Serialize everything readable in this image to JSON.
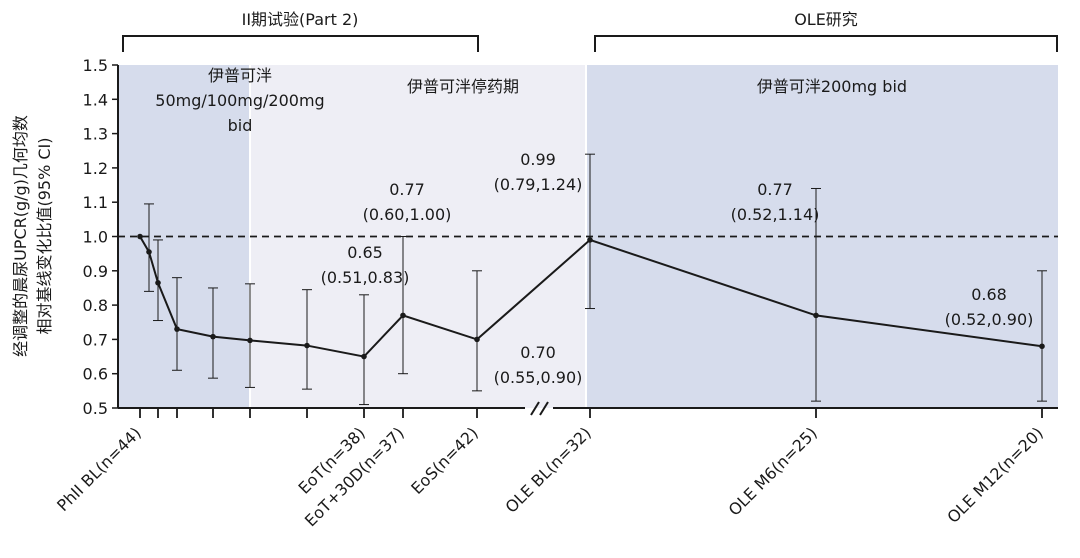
{
  "chart_data": {
    "type": "line",
    "ylabel": "经调整的晨尿UPCR(g/g)几何均数 相对基线变化比值(95% CI)",
    "ylabel_lines": [
      "经调整的晨尿UPCR(g/g)几何均数",
      "相对基线变化比值(95% CI)"
    ],
    "ylim": [
      0.5,
      1.5
    ],
    "yticks": [
      "0.5",
      "0.6",
      "0.7",
      "0.8",
      "0.9",
      "1.0",
      "1.1",
      "1.2",
      "1.3",
      "1.4",
      "1.5"
    ],
    "reference_line": 1.0,
    "periods": [
      {
        "label": "II期试验(Part 2)"
      },
      {
        "label": "OLE研究"
      }
    ],
    "shaded_regions": [
      {
        "label_lines": [
          "伊普可泮",
          "50mg/100mg/200mg",
          "bid"
        ]
      },
      {
        "label_lines": [
          "伊普可泮停药期"
        ]
      },
      {
        "label_lines": [
          "伊普可泮200mg bid"
        ]
      }
    ],
    "x_tick_labels": [
      {
        "label": "PhII BL(n=44)"
      },
      {
        "label": "EoT(n=38)"
      },
      {
        "label": "EoT+30D(n=37)"
      },
      {
        "label": "EoS(n=42)"
      },
      {
        "label": "OLE BL(n=32)"
      },
      {
        "label": "OLE M6(n=25)"
      },
      {
        "label": "OLE M12(n=20)"
      }
    ],
    "series": [
      {
        "points": [
          {
            "y": 1.0,
            "lo": null,
            "hi": null
          },
          {
            "y": 0.955,
            "lo": 0.84,
            "hi": 1.095
          },
          {
            "y": 0.865,
            "lo": 0.755,
            "hi": 0.99
          },
          {
            "y": 0.73,
            "lo": 0.61,
            "hi": 0.88
          },
          {
            "y": 0.708,
            "lo": 0.587,
            "hi": 0.85
          },
          {
            "y": 0.697,
            "lo": 0.56,
            "hi": 0.862
          },
          {
            "y": 0.682,
            "lo": 0.555,
            "hi": 0.845
          },
          {
            "y": 0.65,
            "lo": 0.51,
            "hi": 0.83
          },
          {
            "y": 0.77,
            "lo": 0.6,
            "hi": 1.0
          },
          {
            "y": 0.7,
            "lo": 0.55,
            "hi": 0.9
          },
          {
            "y": 0.99,
            "lo": 0.79,
            "hi": 1.24
          },
          {
            "y": 0.77,
            "lo": 0.52,
            "hi": 1.14
          },
          {
            "y": 0.68,
            "lo": 0.52,
            "hi": 0.9
          }
        ]
      }
    ],
    "annotations": [
      {
        "value": "0.65",
        "ci": "(0.51,0.83)"
      },
      {
        "value": "0.77",
        "ci": "(0.60,1.00)"
      },
      {
        "value": "0.70",
        "ci": "(0.55,0.90)"
      },
      {
        "value": "0.99",
        "ci": "(0.79,1.24)"
      },
      {
        "value": "0.77",
        "ci": "(0.52,1.14)"
      },
      {
        "value": "0.68",
        "ci": "(0.52,0.90)"
      }
    ],
    "colors": {
      "dosing_shade": "#d6dcec",
      "washout_shade": "#eeeef5",
      "line": "#1a1a1a"
    }
  }
}
